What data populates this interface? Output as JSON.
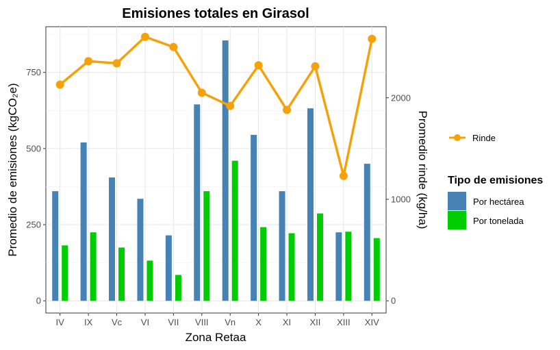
{
  "chart_data": {
    "type": "bar",
    "title": "Emisiones totales en Girasol",
    "xlabel": "Zona Retaa",
    "ylabel": "Promedio de emisiones (kgCO₂e)",
    "y2label": "Promedio rinde (kg/ha)",
    "categories": [
      "IV",
      "IX",
      "Vc",
      "VI",
      "VII",
      "VIII",
      "Vn",
      "X",
      "XI",
      "XII",
      "XIII",
      "XIV"
    ],
    "ylim": [
      -40,
      900
    ],
    "y_ticks": [
      "0",
      "250",
      "500",
      "750"
    ],
    "y2lim": [
      -120,
      2700
    ],
    "y2_ticks": [
      "0",
      "1000",
      "2000"
    ],
    "grid": true,
    "legend_position": "right",
    "line_series": {
      "name": "Rinde",
      "color": "#F5A20A",
      "values": [
        2130,
        2360,
        2340,
        2600,
        2500,
        2050,
        1920,
        2320,
        1880,
        2310,
        1230,
        2580
      ]
    },
    "legend_title": "Tipo de emisiones",
    "series": [
      {
        "name": "Por hectárea",
        "color": "#4682B4",
        "values": [
          360,
          520,
          405,
          335,
          215,
          645,
          855,
          545,
          360,
          632,
          225,
          450
        ]
      },
      {
        "name": "Por tonelada",
        "color": "#00CD00",
        "values": [
          182,
          225,
          175,
          132,
          85,
          360,
          460,
          242,
          222,
          287,
          227,
          206
        ]
      }
    ]
  }
}
